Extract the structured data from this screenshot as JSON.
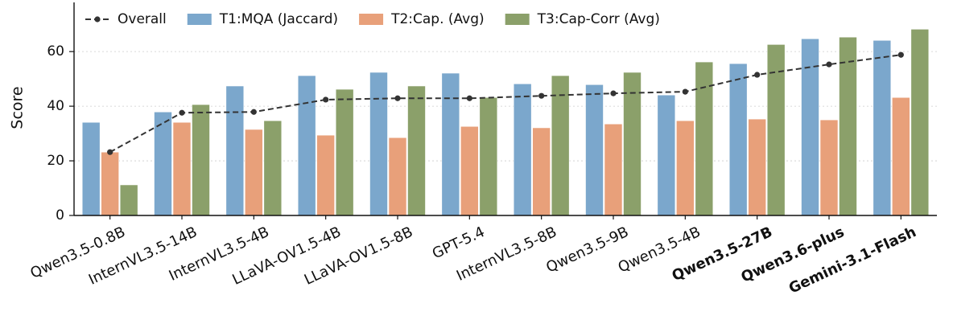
{
  "chart_data": {
    "type": "bar",
    "y_label": "Score",
    "categories": [
      "Qwen3.5-0.8B",
      "InternVL3.5-14B",
      "InternVL3.5-4B",
      "LLaVA-OV1.5-4B",
      "LLaVA-OV1.5-8B",
      "GPT-5.4",
      "InternVL3.5-8B",
      "Qwen3.5-9B",
      "Qwen3.5-4B",
      "Qwen3.5-27B",
      "Qwen3.6-plus",
      "Gemini-3.1-Flash"
    ],
    "bold_categories": [
      "Qwen3.5-27B",
      "Qwen3.6-plus",
      "Gemini-3.1-Flash"
    ],
    "series": [
      {
        "name": "Overall",
        "type": "line",
        "color": "#333333",
        "values": [
          23.2,
          37.6,
          37.9,
          42.4,
          42.9,
          42.9,
          43.8,
          44.7,
          45.3,
          51.5,
          55.3,
          58.8
        ]
      },
      {
        "name": "T1:MQA (Jaccard)",
        "type": "bar",
        "color": "#7ba7cc",
        "values": [
          34.1,
          37.9,
          47.4,
          51.2,
          52.4,
          52.1,
          48.2,
          47.9,
          44.1,
          55.6,
          64.7,
          64.1
        ]
      },
      {
        "name": "T2:Cap. (Avg)",
        "type": "bar",
        "color": "#e8a07a",
        "values": [
          23.2,
          34.1,
          31.5,
          29.4,
          28.5,
          32.6,
          32.1,
          33.5,
          34.7,
          35.3,
          35.0,
          43.2
        ]
      },
      {
        "name": "T3:Cap-Corr (Avg)",
        "type": "bar",
        "color": "#8ba06a",
        "values": [
          11.2,
          40.6,
          34.7,
          46.2,
          47.4,
          43.2,
          51.2,
          52.4,
          56.2,
          62.6,
          65.3,
          68.2
        ]
      }
    ],
    "ylim": [
      0,
      78
    ],
    "yticks": [
      0,
      20,
      40,
      60
    ],
    "grid": true,
    "legend": "upper left"
  }
}
